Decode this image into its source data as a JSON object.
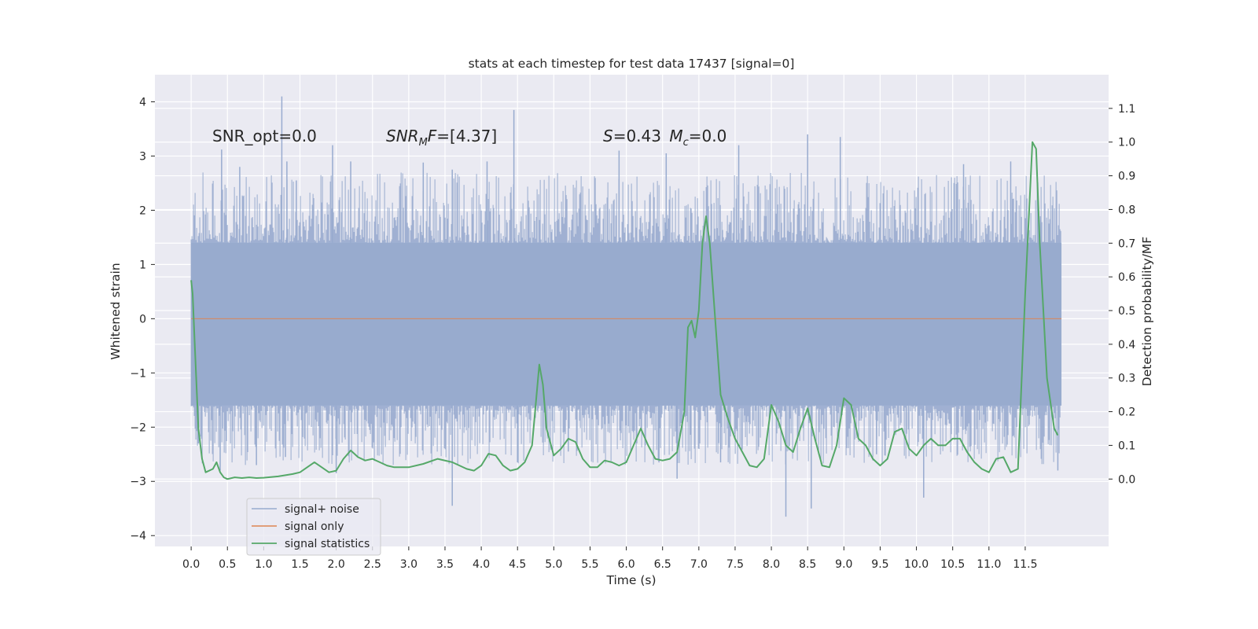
{
  "chart_data": {
    "type": "line",
    "title": "stats at each timestep for test data 17437 [signal=0]",
    "xlabel": "Time (s)",
    "ylabel_left": "Whitened strain",
    "ylabel_right": "Detection probability/MF",
    "xlim": [
      -0.5,
      12.65
    ],
    "ylim_left": [
      -4.2,
      4.5
    ],
    "ylim_right": [
      -0.2,
      1.2
    ],
    "x_ticks": [
      0.0,
      0.5,
      1.0,
      1.5,
      2.0,
      2.5,
      3.0,
      3.5,
      4.0,
      4.5,
      5.0,
      5.5,
      6.0,
      6.5,
      7.0,
      7.5,
      8.0,
      8.5,
      9.0,
      9.5,
      10.0,
      10.5,
      11.0,
      11.5
    ],
    "x_tick_labels": [
      "0.0",
      "0.5",
      "1.0",
      "1.5",
      "2.0",
      "2.5",
      "3.0",
      "3.5",
      "4.0",
      "4.5",
      "5.0",
      "5.5",
      "6.0",
      "6.5",
      "7.0",
      "7.5",
      "8.0",
      "8.5",
      "9.0",
      "9.5",
      "10.0",
      "10.5",
      "11.0",
      "11.5"
    ],
    "y_ticks_left": [
      -4,
      -3,
      -2,
      -1,
      0,
      1,
      2,
      3,
      4
    ],
    "y_tick_labels_left": [
      "−4",
      "−3",
      "−2",
      "−1",
      "0",
      "1",
      "2",
      "3",
      "4"
    ],
    "y_ticks_right": [
      0.0,
      0.1,
      0.2,
      0.3,
      0.4,
      0.5,
      0.6,
      0.7,
      0.8,
      0.9,
      1.0,
      1.1
    ],
    "y_tick_labels_right": [
      "0.0",
      "0.1",
      "0.2",
      "0.3",
      "0.4",
      "0.5",
      "0.6",
      "0.7",
      "0.8",
      "0.9",
      "1.0",
      "1.1"
    ],
    "grid": true,
    "legend_position": "bottom-left",
    "annotations": [
      {
        "text": "SNR_opt=0.0",
        "x": 0.2,
        "y": 3.35
      },
      {
        "text": "SNR_MF=[4.37]",
        "x": 2.6,
        "y": 3.35
      },
      {
        "text": "S=0.43   M_c=0.0",
        "x": 5.6,
        "y": 3.35
      }
    ],
    "series": [
      {
        "name": "signal+ noise",
        "axis": "left",
        "color": "#98abcf",
        "x_range": [
          0.0,
          12.0
        ],
        "band_low": -1.6,
        "band_high": 1.4,
        "spikes": [
          {
            "x": 0.42,
            "y": 3.12
          },
          {
            "x": 0.67,
            "y": 2.8
          },
          {
            "x": 1.25,
            "y": 4.1
          },
          {
            "x": 1.32,
            "y": 2.9
          },
          {
            "x": 1.45,
            "y": 2.55
          },
          {
            "x": 1.95,
            "y": 3.2
          },
          {
            "x": 2.2,
            "y": 2.9
          },
          {
            "x": 3.2,
            "y": 2.88
          },
          {
            "x": 3.6,
            "y": 2.75
          },
          {
            "x": 4.08,
            "y": 2.9
          },
          {
            "x": 4.45,
            "y": 3.85
          },
          {
            "x": 5.9,
            "y": 3.1
          },
          {
            "x": 6.55,
            "y": 3.05
          },
          {
            "x": 7.55,
            "y": 3.2
          },
          {
            "x": 8.5,
            "y": 3.4
          },
          {
            "x": 8.95,
            "y": 3.35
          },
          {
            "x": 10.65,
            "y": 2.85
          },
          {
            "x": 11.3,
            "y": 2.9
          },
          {
            "x": 0.1,
            "y": -2.3
          },
          {
            "x": 0.4,
            "y": -2.8
          },
          {
            "x": 0.9,
            "y": -2.7
          },
          {
            "x": 1.3,
            "y": -2.55
          },
          {
            "x": 2.0,
            "y": -2.85
          },
          {
            "x": 3.6,
            "y": -3.45
          },
          {
            "x": 4.5,
            "y": -2.65
          },
          {
            "x": 5.2,
            "y": -2.45
          },
          {
            "x": 6.45,
            "y": -2.65
          },
          {
            "x": 6.7,
            "y": -2.95
          },
          {
            "x": 7.3,
            "y": -2.65
          },
          {
            "x": 8.2,
            "y": -3.65
          },
          {
            "x": 8.55,
            "y": -3.5
          },
          {
            "x": 9.45,
            "y": -2.5
          },
          {
            "x": 10.1,
            "y": -3.3
          },
          {
            "x": 11.95,
            "y": -2.8
          }
        ]
      },
      {
        "name": "signal only",
        "axis": "left",
        "color": "#dd8452",
        "x": [
          0.0,
          12.0
        ],
        "y": [
          0.0,
          0.0
        ]
      },
      {
        "name": "signal statistics",
        "axis": "right",
        "color": "#55a868",
        "x": [
          0.0,
          0.02,
          0.05,
          0.1,
          0.15,
          0.2,
          0.3,
          0.35,
          0.4,
          0.45,
          0.5,
          0.6,
          0.7,
          0.8,
          0.9,
          1.0,
          1.2,
          1.4,
          1.5,
          1.6,
          1.7,
          1.8,
          1.9,
          2.0,
          2.1,
          2.2,
          2.3,
          2.4,
          2.5,
          2.6,
          2.7,
          2.8,
          3.0,
          3.2,
          3.4,
          3.6,
          3.8,
          3.9,
          4.0,
          4.1,
          4.2,
          4.3,
          4.4,
          4.5,
          4.6,
          4.7,
          4.75,
          4.8,
          4.85,
          4.9,
          5.0,
          5.1,
          5.2,
          5.3,
          5.4,
          5.5,
          5.6,
          5.7,
          5.8,
          5.9,
          6.0,
          6.1,
          6.2,
          6.3,
          6.4,
          6.5,
          6.6,
          6.7,
          6.8,
          6.85,
          6.9,
          6.95,
          7.0,
          7.05,
          7.1,
          7.15,
          7.2,
          7.3,
          7.4,
          7.5,
          7.6,
          7.7,
          7.8,
          7.9,
          8.0,
          8.1,
          8.2,
          8.3,
          8.4,
          8.5,
          8.6,
          8.7,
          8.8,
          8.9,
          9.0,
          9.1,
          9.2,
          9.3,
          9.4,
          9.5,
          9.6,
          9.7,
          9.8,
          9.9,
          10.0,
          10.1,
          10.2,
          10.3,
          10.4,
          10.5,
          10.6,
          10.7,
          10.8,
          10.9,
          11.0,
          11.1,
          11.2,
          11.3,
          11.4,
          11.5,
          11.6,
          11.65,
          11.7,
          11.8,
          11.9,
          11.95
        ],
        "y": [
          0.59,
          0.55,
          0.4,
          0.15,
          0.06,
          0.02,
          0.03,
          0.05,
          0.02,
          0.005,
          0.0,
          0.005,
          0.003,
          0.005,
          0.003,
          0.004,
          0.008,
          0.015,
          0.02,
          0.035,
          0.05,
          0.035,
          0.02,
          0.025,
          0.06,
          0.085,
          0.065,
          0.055,
          0.06,
          0.05,
          0.04,
          0.035,
          0.035,
          0.045,
          0.06,
          0.05,
          0.03,
          0.025,
          0.04,
          0.075,
          0.07,
          0.04,
          0.025,
          0.03,
          0.05,
          0.1,
          0.22,
          0.34,
          0.28,
          0.15,
          0.07,
          0.09,
          0.12,
          0.11,
          0.06,
          0.035,
          0.035,
          0.055,
          0.05,
          0.04,
          0.05,
          0.1,
          0.15,
          0.1,
          0.06,
          0.055,
          0.06,
          0.08,
          0.2,
          0.45,
          0.47,
          0.42,
          0.5,
          0.7,
          0.78,
          0.7,
          0.55,
          0.25,
          0.18,
          0.12,
          0.08,
          0.04,
          0.035,
          0.06,
          0.22,
          0.17,
          0.1,
          0.08,
          0.15,
          0.21,
          0.12,
          0.04,
          0.035,
          0.1,
          0.24,
          0.22,
          0.12,
          0.1,
          0.06,
          0.04,
          0.06,
          0.14,
          0.15,
          0.09,
          0.07,
          0.1,
          0.12,
          0.1,
          0.1,
          0.12,
          0.12,
          0.08,
          0.05,
          0.03,
          0.02,
          0.06,
          0.065,
          0.02,
          0.03,
          0.55,
          1.0,
          0.98,
          0.7,
          0.3,
          0.15,
          0.13
        ]
      }
    ]
  }
}
